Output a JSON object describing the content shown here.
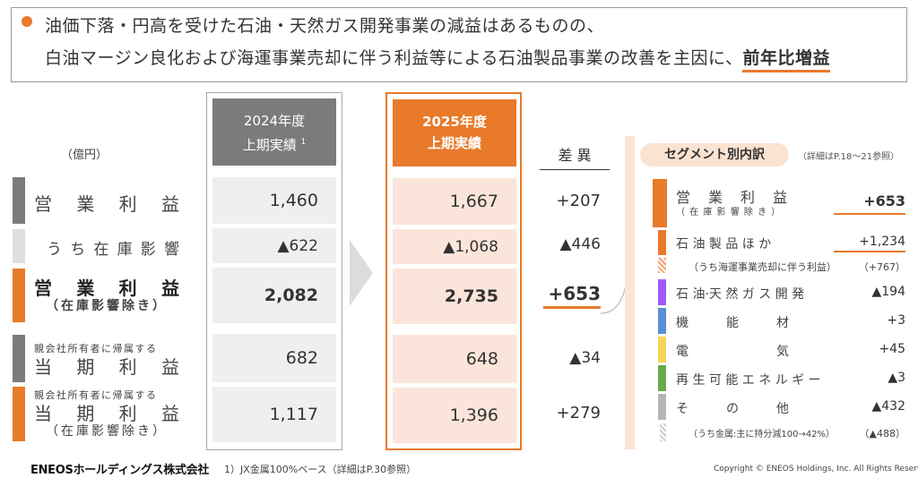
{
  "headline": {
    "line1": "油価下落・円高を受けた石油・天然ガス開発事業の減益はあるものの、",
    "line2": "白油マージン良化および海運事業売却に伴う利益等による石油製品事業の改善を主因に、",
    "emphasis": "前年比増益"
  },
  "unit": "（億円）",
  "columns": {
    "prev": {
      "line1": "2024年度",
      "line2": "上期実績",
      "footnote_mark": "1"
    },
    "curr": {
      "line1": "2025年度",
      "line2": "上期実績"
    },
    "diff": "差 異"
  },
  "rows": [
    {
      "label": [
        "営",
        "業",
        "利",
        "益"
      ],
      "prev": "1,460",
      "curr": "1,667",
      "diff": "+207"
    },
    {
      "label": [
        "う",
        "ち",
        "在",
        "庫",
        "影",
        "響"
      ],
      "prev": "▲622",
      "curr": "▲1,068",
      "diff": "▲446"
    },
    {
      "label": [
        "営",
        "業",
        "利",
        "益"
      ],
      "sub": "（在庫影響除き）",
      "prev": "2,082",
      "curr": "2,735",
      "diff": "+653"
    },
    {
      "pre": "親会社所有者に帰属する",
      "label": [
        "当",
        "期",
        "利",
        "益"
      ],
      "prev": "682",
      "curr": "648",
      "diff": "▲34"
    },
    {
      "pre": "親会社所有者に帰属する",
      "label": [
        "当",
        "期",
        "利",
        "益"
      ],
      "sub": "（在庫影響除き）",
      "prev": "1,117",
      "curr": "1,396",
      "diff": "+279"
    }
  ],
  "segment": {
    "title": "セグメント別内訳",
    "note": "（詳細はP.18～21参照）",
    "items": [
      {
        "label": "営　業　利　益",
        "sub": "（ 在 庫 影 響 除 き ）",
        "value": "+653",
        "color": "#e87a2a"
      },
      {
        "label": "石 油 製 品 ほ か",
        "value": "+1,234",
        "color": "#e87a2a"
      },
      {
        "label": "（うち海運事業売却に伴う利益）",
        "value": "（+767）",
        "color": "#f0a070"
      },
      {
        "label": "石 油·天 然 ガ ス 開 発",
        "value": "▲194",
        "color": "#9b5cf6"
      },
      {
        "label": "機　　　能　　　材",
        "value": "+3",
        "color": "#5b8fd6"
      },
      {
        "label": "電　　　　　　　気",
        "value": "+45",
        "color": "#f7d35a"
      },
      {
        "label": "再 生 可 能 エ ネ ル ギ ー",
        "value": "▲3",
        "color": "#6aa84f"
      },
      {
        "label": "そ　　　の　　　他",
        "value": "▲432",
        "color": "#b5b5b5"
      },
      {
        "label": "（うち金属:主に持分減100→42%）",
        "value": "（▲488）",
        "color": "#cccccc"
      }
    ]
  },
  "footer": {
    "logo": "ENEOSホールディングス株式会社",
    "footnote": "1）JX金属100%ベース（詳細はP.30参照）",
    "copyright": "Copyright © ENEOS Holdings, Inc. All Rights Reserved."
  },
  "colors": {
    "accent": "#e87a2a",
    "gray": "#7b7b7b",
    "peach": "#fbe5da"
  }
}
